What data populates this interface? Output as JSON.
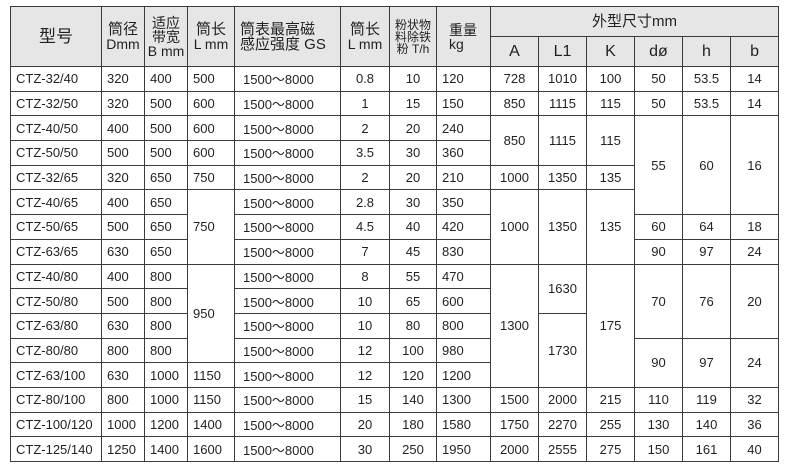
{
  "header": {
    "model": "型号",
    "diameter": [
      "筒径",
      "Dmm"
    ],
    "belt_width": [
      "适应",
      "带宽",
      "B mm"
    ],
    "length": [
      "筒长",
      "L mm"
    ],
    "field": [
      "筒表最高磁",
      "感应强度 GS"
    ],
    "length2": [
      "筒长",
      "L mm"
    ],
    "capacity": [
      "粉状物",
      "料除铁",
      "粉 T/h"
    ],
    "weight": [
      "重量",
      "kg"
    ],
    "dimensions_group": "外型尺寸mm",
    "dimensions": [
      "A",
      "L1",
      "K",
      "dø",
      "h",
      "b"
    ]
  },
  "rows": [
    [
      "CTZ-32/40",
      "320",
      "400",
      "500",
      "1500～8000",
      "0.8",
      "10",
      "120",
      "728",
      "1010",
      "100",
      "50",
      "53.5",
      "14"
    ],
    [
      "CTZ-32/50",
      "320",
      "500",
      "600",
      "1500～8000",
      "1",
      "15",
      "150",
      "850",
      "1115",
      "115",
      "50",
      "53.5",
      "14"
    ],
    [
      "CTZ-40/50",
      "400",
      "500",
      "600",
      "1500～8000",
      "2",
      "20",
      "240",
      {
        "v": "850",
        "rs": 2
      },
      {
        "v": "1115",
        "rs": 2
      },
      {
        "v": "115",
        "rs": 2
      },
      {
        "v": "55",
        "rs": 4
      },
      {
        "v": "60",
        "rs": 4
      },
      {
        "v": "16",
        "rs": 4
      }
    ],
    [
      "CTZ-50/50",
      "500",
      "500",
      "600",
      "1500～8000",
      "3.5",
      "30",
      "360"
    ],
    [
      "CTZ-32/65",
      "320",
      "650",
      "750",
      "1500～8000",
      "2",
      "20",
      "210",
      "1000",
      "1350",
      "135"
    ],
    [
      "CTZ-40/65",
      "400",
      "650",
      {
        "v": "750",
        "rs": 3
      },
      "1500～8000",
      "2.8",
      "30",
      "350",
      {
        "v": "1000",
        "rs": 3
      },
      {
        "v": "1350",
        "rs": 3
      },
      {
        "v": "135",
        "rs": 3
      }
    ],
    [
      "CTZ-50/65",
      "500",
      "650",
      "1500～8000",
      "4.5",
      "40",
      "420",
      "60",
      "64",
      "18"
    ],
    [
      "CTZ-63/65",
      "630",
      "650",
      "1500～8000",
      "7",
      "45",
      "830",
      "90",
      "97",
      "24"
    ],
    [
      "CTZ-40/80",
      "400",
      "800",
      {
        "v": "950",
        "rs": 4
      },
      "1500～8000",
      "8",
      "55",
      "470",
      {
        "v": "1300",
        "rs": 5
      },
      {
        "v": "1630",
        "rs": 2
      },
      {
        "v": "175",
        "rs": 5
      },
      {
        "v": "70",
        "rs": 3
      },
      {
        "v": "76",
        "rs": 3
      },
      {
        "v": "20",
        "rs": 3
      }
    ],
    [
      "CTZ-50/80",
      "500",
      "800",
      "1500～8000",
      "10",
      "65",
      "600"
    ],
    [
      "CTZ-63/80",
      "630",
      "800",
      "1500～8000",
      "10",
      "80",
      "800",
      {
        "v": "1730",
        "rs": 3
      }
    ],
    [
      "CTZ-80/80",
      "800",
      "800",
      "1500～8000",
      "12",
      "100",
      "980",
      {
        "v": "90",
        "rs": 2
      },
      {
        "v": "97",
        "rs": 2
      },
      {
        "v": "24",
        "rs": 2
      }
    ],
    [
      "CTZ-63/100",
      "630",
      "1000",
      "1150",
      "1500～8000",
      "12",
      "120",
      "1200"
    ],
    [
      "CTZ-80/100",
      "800",
      "1000",
      "1150",
      "1500～8000",
      "15",
      "140",
      "1300",
      "1500",
      "2000",
      "215",
      "110",
      "119",
      "32"
    ],
    [
      "CTZ-100/120",
      "1000",
      "1200",
      "1400",
      "1500～8000",
      "20",
      "180",
      "1580",
      "1750",
      "2270",
      "255",
      "130",
      "140",
      "36"
    ],
    [
      "CTZ-125/140",
      "1250",
      "1400",
      "1600",
      "1500～8000",
      "30",
      "250",
      "1950",
      "2000",
      "2555",
      "275",
      "150",
      "161",
      "40"
    ]
  ]
}
